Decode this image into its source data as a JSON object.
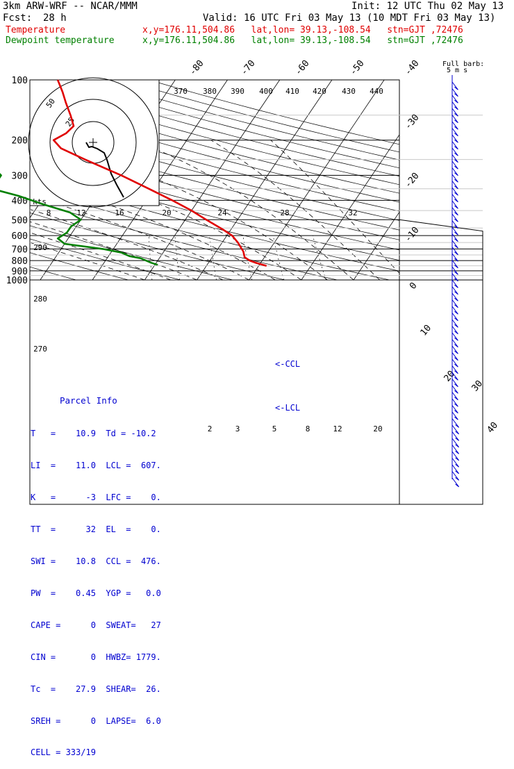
{
  "header": {
    "model": "3km ARW-WRF -- NCAR/MMM",
    "init": "Init: 12 UTC Thu 02 May 13",
    "fcst_label": "Fcst:",
    "fcst_value": "28 h",
    "valid": "Valid: 16 UTC Fri 03 May 13 (10 MDT Fri 03 May 13)",
    "temp_label": "Temperature",
    "temp_info": "x,y=176.11,504.86   lat,lon= 39.13,-108.54   stn=GJT ,72476",
    "dew_label": "Dewpoint temperature",
    "dew_info": "x,y=176.11,504.86   lat,lon= 39.13,-108.54   stn=GJT ,72476"
  },
  "colors": {
    "temperature": "#e00000",
    "dewpoint": "#008000",
    "isobar": "#000000",
    "isotherm": "#000000",
    "parcel_text": "#0000d0",
    "wind": "#0000d0"
  },
  "chart_data": {
    "type": "line",
    "diagram": "skew-T log-p",
    "pressure_levels": [
      100,
      200,
      300,
      400,
      500,
      600,
      700,
      800,
      900,
      1000
    ],
    "pressure_labels": [
      "100",
      "200",
      "300",
      "400",
      "500",
      "600",
      "700",
      "800",
      "900",
      "1000"
    ],
    "ylim": [
      1000,
      100
    ],
    "isotherm_labels": [
      "-80",
      "-70",
      "-60",
      "-50",
      "-40",
      "-30",
      "-20",
      "-10",
      "0",
      "10",
      "20",
      "30",
      "40"
    ],
    "theta_labels": [
      "370",
      "380",
      "390",
      "400",
      "410",
      "420",
      "430",
      "440",
      "290",
      "280",
      "270"
    ],
    "mixing_ratio_labels": [
      "2",
      "3",
      "5",
      "8",
      "12",
      "20"
    ],
    "hodograph": {
      "unit_label": "kts",
      "ring_labels": [
        "25",
        "50"
      ],
      "speed_labels": [
        "8",
        "12",
        "16",
        "20",
        "24",
        "28",
        "32"
      ]
    },
    "series": [
      {
        "name": "Temperature",
        "color": "#e00000",
        "points": [
          [
            850,
            11.5
          ],
          [
            820,
            9.0
          ],
          [
            800,
            7.6
          ],
          [
            770,
            6.2
          ],
          [
            720,
            5.2
          ],
          [
            650,
            3.0
          ],
          [
            600,
            1.0
          ],
          [
            560,
            -1.5
          ],
          [
            500,
            -6.0
          ],
          [
            450,
            -10.0
          ],
          [
            400,
            -15.0
          ],
          [
            350,
            -21.0
          ],
          [
            300,
            -28.0
          ],
          [
            250,
            -37.0
          ],
          [
            220,
            -43.0
          ],
          [
            200,
            -45.5
          ],
          [
            185,
            -44.0
          ],
          [
            170,
            -43.5
          ],
          [
            150,
            -45.5
          ],
          [
            130,
            -48.0
          ],
          [
            115,
            -50.0
          ],
          [
            100,
            -52.5
          ]
        ]
      },
      {
        "name": "Dewpoint temperature",
        "color": "#008000",
        "points": [
          [
            840,
            -9.5
          ],
          [
            820,
            -11.0
          ],
          [
            780,
            -13.5
          ],
          [
            760,
            -16.0
          ],
          [
            730,
            -18.0
          ],
          [
            700,
            -22.0
          ],
          [
            660,
            -30.0
          ],
          [
            620,
            -32.0
          ],
          [
            580,
            -31.0
          ],
          [
            540,
            -31.0
          ],
          [
            500,
            -30.0
          ],
          [
            460,
            -33.0
          ],
          [
            420,
            -39.0
          ],
          [
            380,
            -45.0
          ],
          [
            355,
            -50.0
          ],
          [
            330,
            -51.0
          ],
          [
            300,
            -51.0
          ],
          [
            270,
            -54.0
          ],
          [
            250,
            -59.0
          ],
          [
            220,
            -64.0
          ],
          [
            200,
            -69.0
          ],
          [
            180,
            -74.0
          ],
          [
            160,
            -78.0
          ],
          [
            140,
            -82.0
          ],
          [
            120,
            -85.0
          ],
          [
            100,
            -89.0
          ]
        ]
      }
    ],
    "annotations": [
      "<-CCL",
      "<-LCL",
      "Full barb:",
      "5 m s"
    ],
    "winds_label": "Full barb:",
    "winds_unit": "5 m s"
  },
  "parcel_info": {
    "title": "Parcel Info",
    "rows": [
      "T   =    10.9  Td = -10.2",
      "LI  =    11.0  LCL =  607.",
      "K   =      -3  LFC =    0.",
      "TT  =      32  EL  =    0.",
      "SWI =    10.8  CCL =  476.",
      "PW  =    0.45  YGP =   0.0",
      "CAPE =      0  SWEAT=   27",
      "CIN =       0  HWBZ= 1779.",
      "Tc  =    27.9  SHEAR=  26.",
      "SREH =      0  LAPSE=  6.0",
      "CELL = 333/19"
    ]
  }
}
